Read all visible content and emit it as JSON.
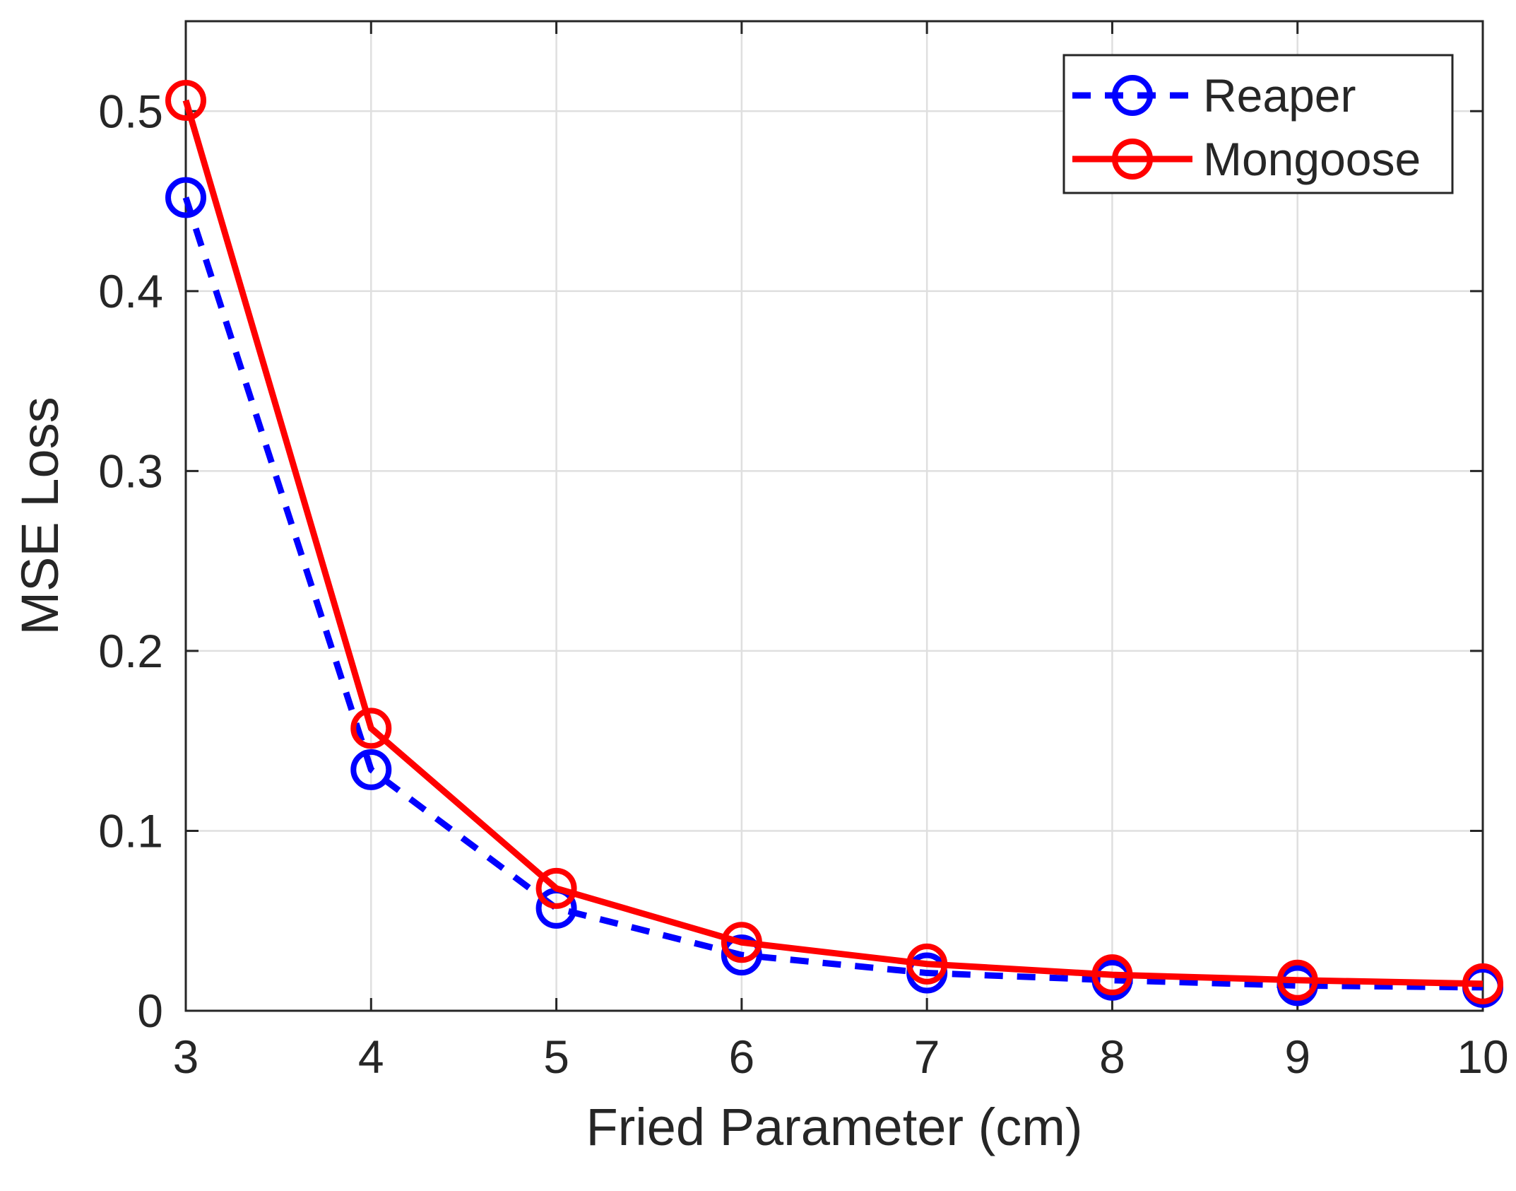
{
  "chart_data": {
    "type": "line",
    "title": "",
    "xlabel": "Fried Parameter (cm)",
    "ylabel": "MSE Loss",
    "xlim": [
      3,
      10
    ],
    "ylim": [
      0,
      0.55
    ],
    "xticks": [
      3,
      4,
      5,
      6,
      7,
      8,
      9,
      10
    ],
    "xtick_labels": [
      "3",
      "4",
      "5",
      "6",
      "7",
      "8",
      "9",
      "10"
    ],
    "yticks": [
      0,
      0.1,
      0.2,
      0.3,
      0.4,
      0.5
    ],
    "ytick_labels": [
      "0",
      "0.1",
      "0.2",
      "0.3",
      "0.4",
      "0.5"
    ],
    "grid": true,
    "legend_position": "top-right",
    "x": [
      3,
      4,
      5,
      6,
      7,
      8,
      9,
      10
    ],
    "series": [
      {
        "name": "Reaper",
        "values": [
          0.452,
          0.134,
          0.057,
          0.031,
          0.021,
          0.017,
          0.014,
          0.013
        ],
        "color": "#0000ff",
        "line_style": "dashed",
        "marker": "circle"
      },
      {
        "name": "Mongoose",
        "values": [
          0.506,
          0.157,
          0.068,
          0.038,
          0.026,
          0.02,
          0.017,
          0.015
        ],
        "color": "#ff0000",
        "line_style": "solid",
        "marker": "circle"
      }
    ]
  },
  "colors": {
    "axis": "#262626",
    "grid": "#dfdfdf",
    "background": "#ffffff"
  }
}
